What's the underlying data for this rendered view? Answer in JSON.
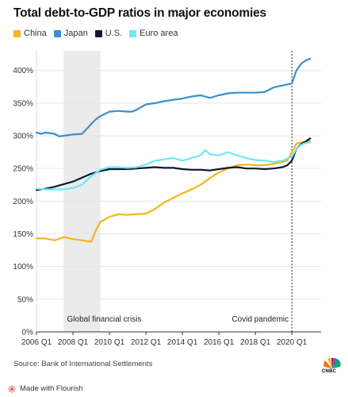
{
  "title": "Total debt-to-GDP ratios in major economies",
  "source": "Source: Bank of International Settlements",
  "footer": {
    "made_with": "Made with Flourish"
  },
  "branding": {
    "logo_text": "CNBC"
  },
  "colors": {
    "China": "#f5b41d",
    "Japan": "#3a8fd0",
    "U.S.": "#0d1a2e",
    "Euro area": "#6fe8f2",
    "band": "#ebebeb",
    "grid": "#e6e6e6"
  },
  "chart_data": {
    "type": "line",
    "title": "Total debt-to-GDP ratios in major economies",
    "xlabel": "",
    "ylabel": "",
    "xlim": [
      2006.0,
      2021.6
    ],
    "ylim": [
      0,
      430
    ],
    "yticks": [
      0,
      50,
      100,
      150,
      200,
      250,
      300,
      350,
      400
    ],
    "ytick_labels": [
      "0%",
      "50%",
      "100%",
      "150%",
      "200%",
      "250%",
      "300%",
      "350%",
      "400%"
    ],
    "xticks": [
      2006,
      2008,
      2010,
      2012,
      2014,
      2016,
      2018,
      2020
    ],
    "xtick_labels": [
      "2006 Q1",
      "2008 Q1",
      "2010 Q1",
      "2012 Q1",
      "2014 Q1",
      "2016 Q1",
      "2018 Q1",
      "2020 Q1"
    ],
    "legend": [
      "China",
      "Japan",
      "U.S.",
      "Euro area"
    ],
    "legend_position": "top-left",
    "grid": "horizontal",
    "shaded_band": {
      "x0": 2007.5,
      "x1": 2009.5,
      "label": "Global financial crisis"
    },
    "vline": {
      "x": 2020.0,
      "label": "Covid pandemic",
      "style": "dotted"
    },
    "series": [
      {
        "name": "China",
        "points": [
          [
            2006,
            143
          ],
          [
            2006.5,
            143
          ],
          [
            2007,
            140
          ],
          [
            2007.5,
            145
          ],
          [
            2008,
            142
          ],
          [
            2008.5,
            140
          ],
          [
            2009,
            138
          ],
          [
            2009.25,
            155
          ],
          [
            2009.5,
            168
          ],
          [
            2010,
            176
          ],
          [
            2010.5,
            180
          ],
          [
            2011,
            179
          ],
          [
            2011.5,
            180
          ],
          [
            2012,
            181
          ],
          [
            2012.5,
            188
          ],
          [
            2013,
            198
          ],
          [
            2013.5,
            205
          ],
          [
            2014,
            212
          ],
          [
            2014.5,
            218
          ],
          [
            2015,
            225
          ],
          [
            2015.5,
            235
          ],
          [
            2016,
            244
          ],
          [
            2016.5,
            250
          ],
          [
            2017,
            255
          ],
          [
            2017.5,
            256
          ],
          [
            2018,
            255
          ],
          [
            2018.5,
            255
          ],
          [
            2019,
            257
          ],
          [
            2019.5,
            260
          ],
          [
            2019.75,
            262
          ],
          [
            2020,
            275
          ],
          [
            2020.25,
            288
          ],
          [
            2020.5,
            290
          ],
          [
            2020.75,
            291
          ],
          [
            2021,
            292
          ]
        ]
      },
      {
        "name": "Japan",
        "points": [
          [
            2006,
            305
          ],
          [
            2006.25,
            303
          ],
          [
            2006.5,
            305
          ],
          [
            2007,
            303
          ],
          [
            2007.25,
            299
          ],
          [
            2007.5,
            300
          ],
          [
            2008,
            302
          ],
          [
            2008.5,
            303
          ],
          [
            2009,
            318
          ],
          [
            2009.25,
            325
          ],
          [
            2009.5,
            330
          ],
          [
            2010,
            337
          ],
          [
            2010.5,
            338
          ],
          [
            2011,
            337
          ],
          [
            2011.25,
            337
          ],
          [
            2011.5,
            340
          ],
          [
            2012,
            348
          ],
          [
            2012.5,
            350
          ],
          [
            2013,
            353
          ],
          [
            2013.5,
            355
          ],
          [
            2014,
            357
          ],
          [
            2014.5,
            360
          ],
          [
            2015,
            362
          ],
          [
            2015.5,
            358
          ],
          [
            2016,
            362
          ],
          [
            2016.5,
            365
          ],
          [
            2017,
            366
          ],
          [
            2017.5,
            366
          ],
          [
            2018,
            366
          ],
          [
            2018.5,
            367
          ],
          [
            2019,
            374
          ],
          [
            2019.5,
            377
          ],
          [
            2020,
            380
          ],
          [
            2020.25,
            400
          ],
          [
            2020.5,
            410
          ],
          [
            2020.75,
            415
          ],
          [
            2021,
            418
          ]
        ]
      },
      {
        "name": "U.S.",
        "points": [
          [
            2006,
            217
          ],
          [
            2006.5,
            219
          ],
          [
            2007,
            222
          ],
          [
            2007.5,
            226
          ],
          [
            2008,
            230
          ],
          [
            2008.5,
            236
          ],
          [
            2009,
            242
          ],
          [
            2009.5,
            246
          ],
          [
            2010,
            249
          ],
          [
            2010.5,
            249
          ],
          [
            2011,
            249
          ],
          [
            2011.5,
            250
          ],
          [
            2012,
            251
          ],
          [
            2012.5,
            252
          ],
          [
            2013,
            251
          ],
          [
            2013.5,
            251
          ],
          [
            2014,
            249
          ],
          [
            2014.5,
            248
          ],
          [
            2015,
            248
          ],
          [
            2015.5,
            247
          ],
          [
            2016,
            249
          ],
          [
            2016.5,
            251
          ],
          [
            2017,
            252
          ],
          [
            2017.5,
            250
          ],
          [
            2018,
            250
          ],
          [
            2018.5,
            249
          ],
          [
            2019,
            250
          ],
          [
            2019.5,
            252
          ],
          [
            2019.75,
            255
          ],
          [
            2020,
            262
          ],
          [
            2020.25,
            280
          ],
          [
            2020.5,
            287
          ],
          [
            2020.75,
            291
          ],
          [
            2021,
            296
          ]
        ]
      },
      {
        "name": "Euro area",
        "points": [
          [
            2006,
            219
          ],
          [
            2006.5,
            218
          ],
          [
            2007,
            218
          ],
          [
            2007.5,
            218
          ],
          [
            2008,
            220
          ],
          [
            2008.5,
            225
          ],
          [
            2009,
            238
          ],
          [
            2009.5,
            248
          ],
          [
            2010,
            252
          ],
          [
            2010.5,
            252
          ],
          [
            2011,
            251
          ],
          [
            2011.5,
            252
          ],
          [
            2012,
            256
          ],
          [
            2012.5,
            262
          ],
          [
            2013,
            264
          ],
          [
            2013.5,
            266
          ],
          [
            2014,
            262
          ],
          [
            2014.5,
            266
          ],
          [
            2015,
            270
          ],
          [
            2015.25,
            278
          ],
          [
            2015.5,
            272
          ],
          [
            2016,
            270
          ],
          [
            2016.5,
            275
          ],
          [
            2017,
            270
          ],
          [
            2017.5,
            266
          ],
          [
            2018,
            263
          ],
          [
            2018.5,
            262
          ],
          [
            2019,
            260
          ],
          [
            2019.5,
            262
          ],
          [
            2019.75,
            265
          ],
          [
            2020,
            268
          ],
          [
            2020.25,
            280
          ],
          [
            2020.5,
            286
          ],
          [
            2020.75,
            289
          ],
          [
            2021,
            290
          ]
        ]
      }
    ]
  }
}
